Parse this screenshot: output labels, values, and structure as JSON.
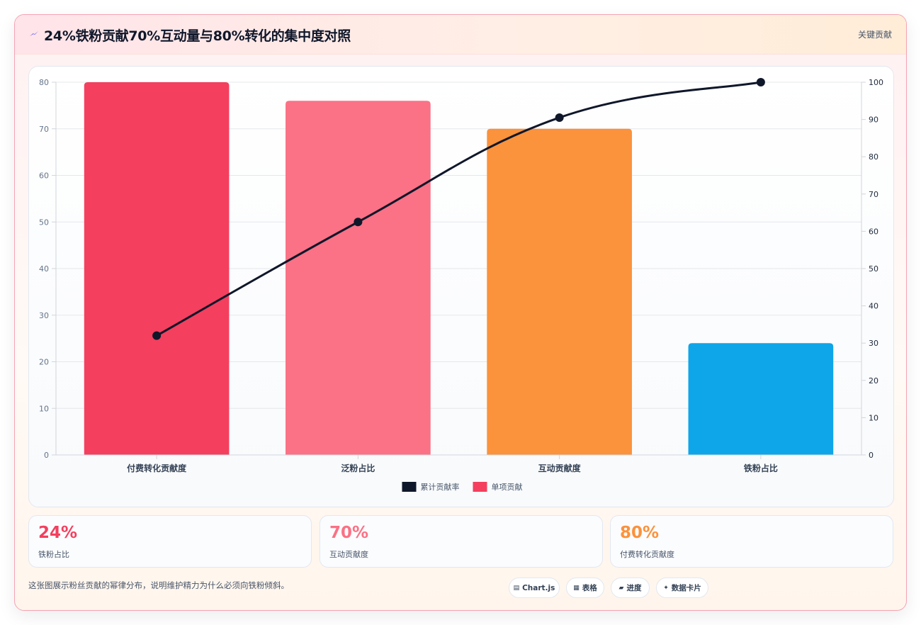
{
  "header": {
    "title": "24%铁粉贡献70%互动量与80%转化的集中度对照",
    "tag": "关键贡献",
    "icon": "bolt-icon",
    "icon_color": "#4f46e5"
  },
  "chart_data": {
    "type": "bar",
    "categories": [
      "付费转化贡献度",
      "泛粉占比",
      "互动贡献度",
      "铁粉占比"
    ],
    "series": [
      {
        "name": "单项贡献",
        "type": "bar",
        "axis": "left",
        "values": [
          80,
          76,
          70,
          24
        ],
        "colors": [
          "#f43f5e",
          "#fb7185",
          "#fb923c",
          "#0ea5e9"
        ]
      },
      {
        "name": "累计贡献率",
        "type": "line",
        "axis": "right",
        "values": [
          32,
          62.5,
          90.5,
          100
        ],
        "color": "#0f172a"
      }
    ],
    "ylim_left": [
      0,
      80
    ],
    "yticks_left": [
      0,
      10,
      20,
      30,
      40,
      50,
      60,
      70,
      80
    ],
    "ylim_right": [
      0,
      100
    ],
    "yticks_right": [
      0,
      10,
      20,
      30,
      40,
      50,
      60,
      70,
      80,
      90,
      100
    ],
    "grid": true,
    "legend_position": "bottom",
    "legend": [
      {
        "label": "累计贡献率",
        "color": "#0f172a"
      },
      {
        "label": "单项贡献",
        "color": "#f43f5e"
      }
    ]
  },
  "stats": [
    {
      "value": "24%",
      "label": "铁粉占比",
      "color": "#f43f5e"
    },
    {
      "value": "70%",
      "label": "互动贡献度",
      "color": "#fb7185"
    },
    {
      "value": "80%",
      "label": "付费转化贡献度",
      "color": "#fb923c"
    }
  ],
  "footnote": "这张图展示粉丝贡献的幂律分布，说明维护精力为什么必须向铁粉倾斜。",
  "chips": [
    {
      "label": "Chart.js",
      "icon": "chart-icon",
      "glyph": "▤"
    },
    {
      "label": "表格",
      "icon": "table-icon",
      "glyph": "▦"
    },
    {
      "label": "进度",
      "icon": "progress-icon",
      "glyph": "▰"
    },
    {
      "label": "数据卡片",
      "icon": "card-icon",
      "glyph": "✦"
    }
  ]
}
